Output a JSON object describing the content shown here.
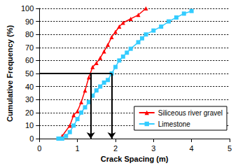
{
  "chart_data": {
    "type": "line",
    "x_label": "Crack Spacing (m)",
    "y_label": "Cumulative Frequency (%)",
    "xlim": [
      0,
      5
    ],
    "xticks": [
      0,
      1,
      2,
      3,
      4,
      5
    ],
    "ylim": [
      0,
      100
    ],
    "yticks": [
      0,
      10,
      20,
      30,
      40,
      50,
      60,
      70,
      80,
      90,
      100
    ],
    "grid": true,
    "legend": "lower right",
    "series": [
      {
        "name": "Siliceous river gravel",
        "color": "#ff0000",
        "marker": "triangle",
        "x": [
          0.6,
          0.8,
          0.9,
          1.0,
          1.1,
          1.2,
          1.3,
          1.4,
          1.5,
          1.6,
          1.7,
          1.8,
          1.9,
          2.0,
          2.1,
          2.2,
          2.4,
          2.6,
          2.8
        ],
        "values": [
          2,
          10,
          18,
          21,
          28,
          37,
          47,
          55,
          58,
          62,
          67,
          72,
          78,
          82,
          86,
          89,
          92,
          95,
          100
        ]
      },
      {
        "name": "Limestone",
        "color": "#33ccff",
        "marker": "square",
        "x": [
          0.5,
          0.6,
          0.7,
          0.8,
          0.9,
          1.0,
          1.1,
          1.2,
          1.3,
          1.4,
          1.5,
          1.6,
          1.7,
          1.8,
          1.9,
          2.0,
          2.1,
          2.2,
          2.3,
          2.4,
          2.6,
          2.7,
          2.8,
          3.0,
          3.2,
          3.4,
          3.6,
          3.8,
          4.0
        ],
        "values": [
          0,
          0,
          2,
          5,
          10,
          15,
          20,
          24,
          28,
          33,
          37,
          40,
          43,
          45,
          50,
          55,
          60,
          63,
          66,
          69,
          74,
          77,
          80,
          83,
          86,
          90,
          93,
          96,
          98
        ]
      }
    ],
    "reference_lines": [
      {
        "x": [
          0,
          1.9
        ],
        "y": [
          50,
          50
        ],
        "line_style": "solid"
      },
      {
        "x": [
          1.35,
          1.35
        ],
        "y": [
          50,
          0
        ],
        "line_style": "arrow"
      },
      {
        "x": [
          1.9,
          1.9
        ],
        "y": [
          50,
          0
        ],
        "line_style": "arrow"
      }
    ]
  }
}
